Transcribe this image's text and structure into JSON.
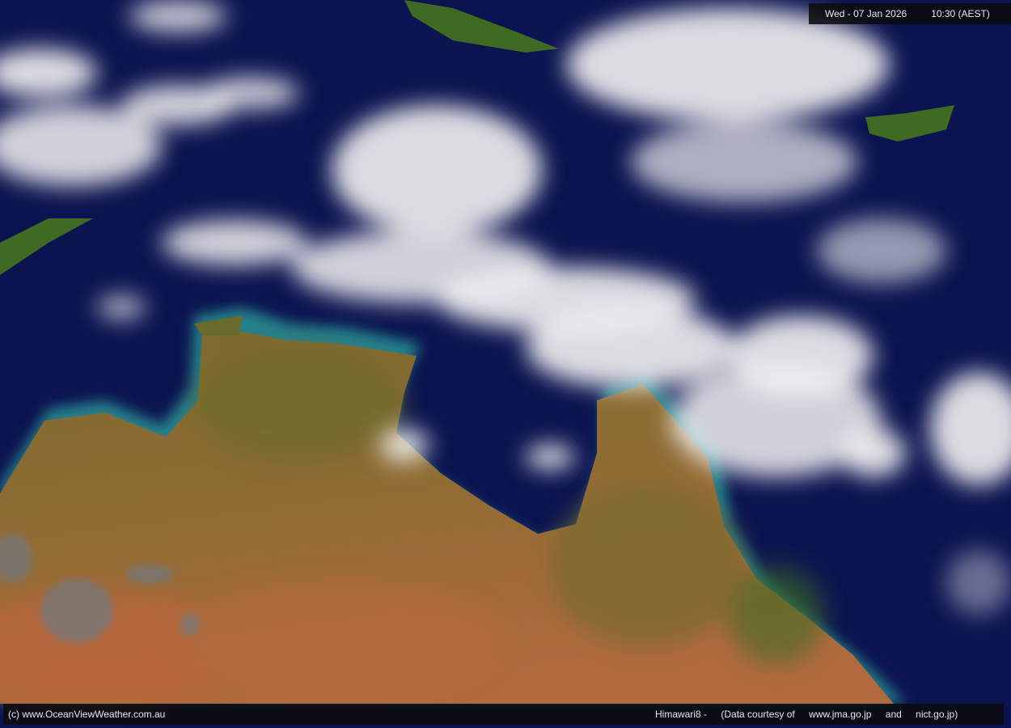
{
  "header": {
    "date": "Wed - 07 Jan 2026",
    "time": "10:30 (AEST)"
  },
  "footer": {
    "copyright": "(c) www.OceanViewWeather.com.au",
    "satellite": "Himawari8  -",
    "courtesy": "(Data courtesy of",
    "source1": "www.jma.go.jp",
    "and": "and",
    "source2": "nict.go.jp)"
  },
  "colors": {
    "ocean": "#0c1450",
    "shallow_water": "#2a9a98",
    "land": "#8a6a32",
    "desert": "#b0643a",
    "vegetation": "#3e6a22",
    "cloud": "#f2f2f2"
  }
}
